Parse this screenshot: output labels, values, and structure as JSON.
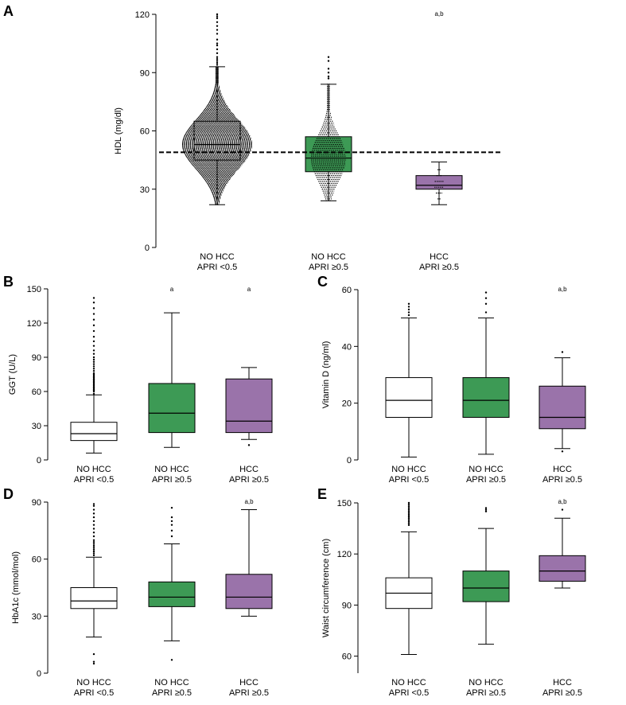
{
  "colors": {
    "white": "#ffffff",
    "green": "#3d9a55",
    "purple": "#9a73aa",
    "stroke": "#000000"
  },
  "chart_data": [
    {
      "panel": "A",
      "type": "box",
      "ylabel": "HDL (mg/dl)",
      "ylim": [
        0,
        120
      ],
      "yticks": [
        0,
        30,
        60,
        90,
        120
      ],
      "categories": [
        [
          "NO HCC",
          "APRI <0.5"
        ],
        [
          "NO HCC",
          "APRI ≥0.5"
        ],
        [
          "HCC",
          "APRI ≥0.5"
        ]
      ],
      "annotations": [
        "",
        "",
        "a,b"
      ],
      "reference_line": 49,
      "boxes": [
        {
          "color": "white",
          "whisker_low": 22,
          "q1": 45,
          "median": 53,
          "q3": 65,
          "whisker_high": 93,
          "outliers": [
            94,
            95,
            96,
            97,
            98,
            100,
            102,
            104,
            105,
            107,
            110,
            112,
            114,
            116,
            118,
            119,
            120
          ]
        },
        {
          "color": "green",
          "whisker_low": 24,
          "q1": 39,
          "median": 46,
          "q3": 57,
          "whisker_high": 84,
          "outliers": [
            87,
            88,
            90,
            92,
            96,
            98
          ]
        },
        {
          "color": "purple",
          "whisker_low": 22,
          "q1": 30,
          "median": 32,
          "q3": 37,
          "whisker_high": 44,
          "outliers": []
        }
      ]
    },
    {
      "panel": "B",
      "type": "box",
      "ylabel": "GGT (U/L)",
      "ylim": [
        0,
        150
      ],
      "yticks": [
        0,
        30,
        60,
        90,
        120,
        150
      ],
      "categories": [
        [
          "NO HCC",
          "APRI <0.5"
        ],
        [
          "NO HCC",
          "APRI ≥0.5"
        ],
        [
          "HCC",
          "APRI ≥0.5"
        ]
      ],
      "annotations": [
        "",
        "a",
        "a"
      ],
      "boxes": [
        {
          "color": "white",
          "whisker_low": 6,
          "q1": 17,
          "median": 23,
          "q3": 33,
          "whisker_high": 57,
          "outliers": [
            58,
            60,
            61,
            62,
            63,
            64,
            65,
            66,
            67,
            68,
            69,
            70,
            71,
            72,
            73,
            74,
            75,
            76,
            78,
            80,
            82,
            84,
            86,
            88,
            90,
            93,
            96,
            100,
            104,
            108,
            113,
            118,
            123,
            128,
            133,
            138,
            142
          ]
        },
        {
          "color": "green",
          "whisker_low": 11,
          "q1": 24,
          "median": 41,
          "q3": 67,
          "whisker_high": 129,
          "outliers": []
        },
        {
          "color": "purple",
          "whisker_low": 18,
          "q1": 24,
          "median": 34,
          "q3": 71,
          "whisker_high": 81,
          "outliers": [
            13
          ]
        }
      ]
    },
    {
      "panel": "C",
      "type": "box",
      "ylabel": "Vitamin D (ng/ml)",
      "ylim": [
        0,
        60
      ],
      "yticks": [
        0,
        20,
        40,
        60
      ],
      "categories": [
        [
          "NO HCC",
          "APRI <0.5"
        ],
        [
          "NO HCC",
          "APRI ≥0.5"
        ],
        [
          "HCC",
          "APRI ≥0.5"
        ]
      ],
      "annotations": [
        "",
        "",
        "a,b"
      ],
      "boxes": [
        {
          "color": "white",
          "whisker_low": 1,
          "q1": 15,
          "median": 21,
          "q3": 29,
          "whisker_high": 50,
          "outliers": [
            51,
            52,
            53,
            54,
            55
          ]
        },
        {
          "color": "green",
          "whisker_low": 2,
          "q1": 15,
          "median": 21,
          "q3": 29,
          "whisker_high": 50,
          "outliers": [
            52,
            55,
            57,
            59
          ]
        },
        {
          "color": "purple",
          "whisker_low": 4,
          "q1": 11,
          "median": 15,
          "q3": 26,
          "whisker_high": 36,
          "outliers": [
            3,
            38
          ]
        }
      ]
    },
    {
      "panel": "D",
      "type": "box",
      "ylabel": "HbA1c (mmol/mol)",
      "ylim": [
        0,
        90
      ],
      "yticks": [
        0,
        30,
        60,
        90
      ],
      "categories": [
        [
          "NO HCC",
          "APRI <0.5"
        ],
        [
          "NO HCC",
          "APRI ≥0.5"
        ],
        [
          "HCC",
          "APRI ≥0.5"
        ]
      ],
      "annotations": [
        "",
        "",
        "a,b"
      ],
      "boxes": [
        {
          "color": "white",
          "whisker_low": 19,
          "q1": 34,
          "median": 38,
          "q3": 45,
          "whisker_high": 61,
          "outliers": [
            5,
            6,
            10,
            62,
            63,
            64,
            65,
            66,
            67,
            68,
            69,
            70,
            72,
            74,
            76,
            78,
            80,
            82,
            84,
            86,
            88,
            89
          ]
        },
        {
          "color": "green",
          "whisker_low": 17,
          "q1": 35,
          "median": 40,
          "q3": 48,
          "whisker_high": 68,
          "outliers": [
            7,
            72,
            75,
            78,
            80,
            82,
            87
          ]
        },
        {
          "color": "purple",
          "whisker_low": 30,
          "q1": 34,
          "median": 40,
          "q3": 52,
          "whisker_high": 86,
          "outliers": []
        }
      ]
    },
    {
      "panel": "E",
      "type": "box",
      "ylabel": "Waist circumference (cm)",
      "ylim": [
        50,
        150
      ],
      "yticks": [
        60,
        90,
        120,
        150
      ],
      "categories": [
        [
          "NO HCC",
          "APRI <0.5"
        ],
        [
          "NO HCC",
          "APRI ≥0.5"
        ],
        [
          "HCC",
          "APRI ≥0.5"
        ]
      ],
      "annotations": [
        "",
        "",
        "a,b"
      ],
      "boxes": [
        {
          "color": "white",
          "whisker_low": 61,
          "q1": 88,
          "median": 97,
          "q3": 106,
          "whisker_high": 133,
          "outliers": [
            137,
            138,
            139,
            140,
            141,
            142,
            143,
            144,
            145,
            146,
            147,
            148,
            149,
            150
          ]
        },
        {
          "color": "green",
          "whisker_low": 67,
          "q1": 92,
          "median": 100,
          "q3": 110,
          "whisker_high": 135,
          "outliers": [
            145,
            146,
            147
          ]
        },
        {
          "color": "purple",
          "whisker_low": 100,
          "q1": 104,
          "median": 110,
          "q3": 119,
          "whisker_high": 141,
          "outliers": [
            146
          ]
        }
      ]
    }
  ]
}
